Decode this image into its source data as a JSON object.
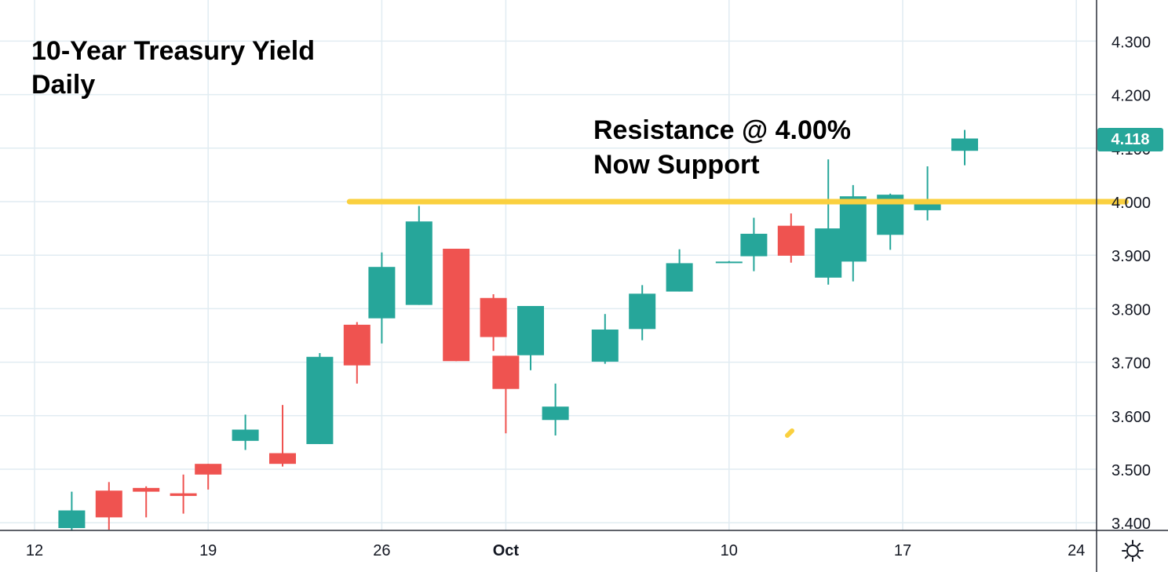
{
  "title": {
    "line1": "10-Year Treasury Yield",
    "line2": "Daily"
  },
  "annotation": {
    "line1": "Resistance @ 4.00%",
    "line2": "Now Support"
  },
  "last_price": {
    "label": "4.118",
    "color": "#26a69a"
  },
  "colors": {
    "up": "#26a69a",
    "down": "#ef5350",
    "grid": "#e1ecf2",
    "line": "#fad03f",
    "axis_text": "#131722"
  },
  "settings_icon": "gear-icon",
  "chart_data": {
    "type": "candlestick",
    "title": "10-Year Treasury Yield Daily",
    "ylim": [
      3.385,
      4.375
    ],
    "y_ticks": [
      "3.400",
      "3.500",
      "3.600",
      "3.700",
      "3.800",
      "3.900",
      "4.000",
      "4.100",
      "4.200",
      "4.300"
    ],
    "x_ticks": [
      {
        "label": "12",
        "day": 12
      },
      {
        "label": "19",
        "day": 19
      },
      {
        "label": "26",
        "day": 26
      },
      {
        "label": "Oct",
        "day": 31
      },
      {
        "label": "10",
        "day": 40
      },
      {
        "label": "17",
        "day": 47
      },
      {
        "label": "24",
        "day": 54
      }
    ],
    "candles": [
      {
        "day": 13.5,
        "open": 3.39,
        "high": 3.458,
        "low": 3.385,
        "close": 3.423
      },
      {
        "day": 15,
        "open": 3.46,
        "high": 3.476,
        "low": 3.387,
        "close": 3.41
      },
      {
        "day": 16.5,
        "open": 3.465,
        "high": 3.468,
        "low": 3.41,
        "close": 3.458
      },
      {
        "day": 18,
        "open": 3.455,
        "high": 3.49,
        "low": 3.417,
        "close": 3.45
      },
      {
        "day": 19,
        "open": 3.51,
        "high": 3.51,
        "low": 3.462,
        "close": 3.49
      },
      {
        "day": 20.5,
        "open": 3.553,
        "high": 3.602,
        "low": 3.536,
        "close": 3.574
      },
      {
        "day": 22,
        "open": 3.53,
        "high": 3.62,
        "low": 3.505,
        "close": 3.51
      },
      {
        "day": 23.5,
        "open": 3.547,
        "high": 3.717,
        "low": 3.547,
        "close": 3.71
      },
      {
        "day": 25,
        "open": 3.77,
        "high": 3.775,
        "low": 3.66,
        "close": 3.694
      },
      {
        "day": 26,
        "open": 3.782,
        "high": 3.905,
        "low": 3.735,
        "close": 3.878
      },
      {
        "day": 27.5,
        "open": 3.807,
        "high": 3.992,
        "low": 3.807,
        "close": 3.963
      },
      {
        "day": 29,
        "open": 3.912,
        "high": 3.912,
        "low": 3.702,
        "close": 3.702
      },
      {
        "day": 30.5,
        "open": 3.82,
        "high": 3.827,
        "low": 3.721,
        "close": 3.747
      },
      {
        "day": 32,
        "open": 3.713,
        "high": 3.805,
        "low": 3.685,
        "close": 3.805
      },
      {
        "day": 31,
        "open": 3.712,
        "high": 3.712,
        "low": 3.567,
        "close": 3.65
      },
      {
        "day": 33,
        "open": 3.592,
        "high": 3.66,
        "low": 3.563,
        "close": 3.617
      },
      {
        "day": 35,
        "open": 3.701,
        "high": 3.79,
        "low": 3.697,
        "close": 3.761
      },
      {
        "day": 36.5,
        "open": 3.762,
        "high": 3.844,
        "low": 3.741,
        "close": 3.828
      },
      {
        "day": 38,
        "open": 3.832,
        "high": 3.911,
        "low": 3.832,
        "close": 3.885
      },
      {
        "day": 40,
        "open": 3.887,
        "high": 3.889,
        "low": 3.886,
        "close": 3.888
      },
      {
        "day": 41,
        "open": 3.898,
        "high": 3.97,
        "low": 3.87,
        "close": 3.94
      },
      {
        "day": 42.5,
        "open": 3.955,
        "high": 3.978,
        "low": 3.886,
        "close": 3.899
      },
      {
        "day": 44,
        "open": 3.858,
        "high": 4.079,
        "low": 3.845,
        "close": 3.95
      },
      {
        "day": 45,
        "open": 3.888,
        "high": 4.031,
        "low": 3.851,
        "close": 4.01
      },
      {
        "day": 46.5,
        "open": 3.938,
        "high": 4.015,
        "low": 3.91,
        "close": 4.013
      },
      {
        "day": 48,
        "open": 3.984,
        "high": 4.066,
        "low": 3.965,
        "close": 3.996
      },
      {
        "day": 49.5,
        "open": 4.095,
        "high": 4.134,
        "low": 4.068,
        "close": 4.118
      }
    ],
    "horizontal_line": {
      "value": 4.0,
      "from_day": 24.7,
      "to_day": 56
    }
  }
}
